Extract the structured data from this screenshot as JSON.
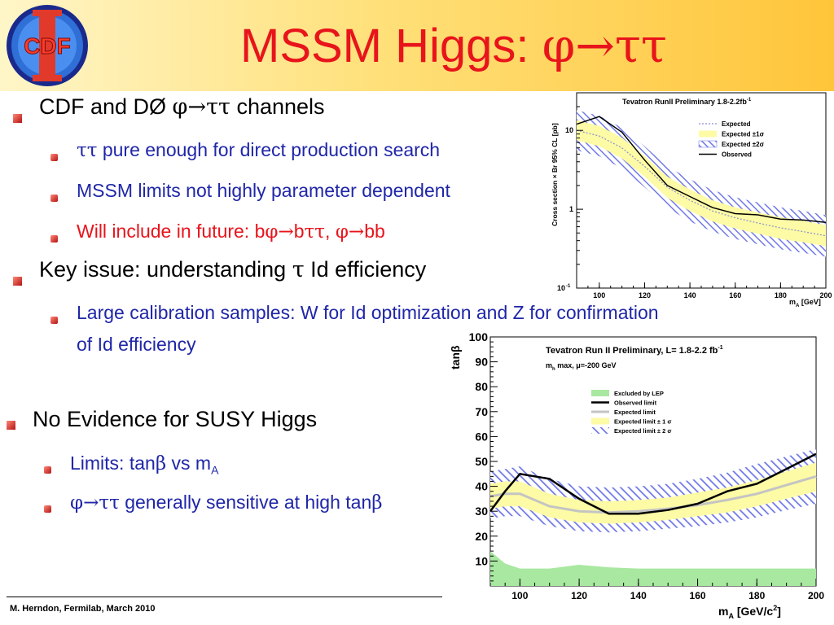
{
  "slide": {
    "title_text": "MSSM Higgs: ",
    "title_symbol": "φ→ττ",
    "logo_text": "CDF",
    "footer": "M. Herndon,  Fermilab,  March 2010",
    "bullets": {
      "b1": {
        "pre": "CDF and DØ ",
        "sym": "φ→ττ",
        "post": " channels"
      },
      "b1a": {
        "sym": "ττ",
        "post": " pure enough for direct production search"
      },
      "b1b": {
        "text": "MSSM limits not highly parameter dependent"
      },
      "b1c": {
        "pre": "Will include in future: b",
        "sym1": "φ→",
        "mid": "b",
        "sym2": "ττ",
        "comma": ", ",
        "sym3": "φ→",
        "post": "bb"
      },
      "b2": {
        "pre": "Key issue: understanding ",
        "sym": "τ",
        "post": " Id efficiency"
      },
      "b2a": {
        "line1": "Large calibration samples: W for Id optimization and Z for confirmation",
        "line2": "of Id efficiency"
      },
      "b3": {
        "text": "No Evidence for SUSY Higgs"
      },
      "b3a": {
        "pre": "Limits: tan",
        "sym": "β",
        "mid": " vs m",
        "sub": "A"
      },
      "b3b": {
        "sym1": "φ→ττ",
        "mid": " generally sensitive at high tan",
        "sym2": "β"
      }
    }
  },
  "chart_data": [
    {
      "type": "line",
      "title": "Tevatron RunII Preliminary 1.8-2.2fb",
      "title_sup": "-1",
      "xlabel": "m",
      "xlabel_sub": "A",
      "xlabel_unit": " [GeV]",
      "ylabel": "Cross section × Br 95% CL [pb]",
      "xlim": [
        90,
        200
      ],
      "ylim": [
        0.1,
        30
      ],
      "y_scale": "log",
      "x_ticks": [
        "100",
        "120",
        "140",
        "160",
        "180",
        "200"
      ],
      "y_ticks": [
        "10",
        "1"
      ],
      "y_tick_bottom": "10",
      "y_tick_bottom_sup": "-1",
      "legend": [
        {
          "label": "Expected",
          "style": "dotted"
        },
        {
          "label": "Expected ±1σ",
          "style": "yellow-band"
        },
        {
          "label": "Expected ±2σ",
          "style": "blue-hatched"
        },
        {
          "label": "Observed",
          "style": "solid"
        }
      ],
      "legend_position": "top-right",
      "colors": {
        "band1": "#fdfba5",
        "band2": "#6f78e6",
        "observed": "#000000",
        "expected": "#8b8fd0"
      },
      "x": [
        90,
        100,
        110,
        120,
        130,
        140,
        150,
        160,
        170,
        180,
        190,
        200
      ],
      "series": [
        {
          "name": "Observed",
          "values": [
            12,
            15,
            9.5,
            4.2,
            2.0,
            1.45,
            1.05,
            0.88,
            0.85,
            0.75,
            0.73,
            0.68
          ]
        },
        {
          "name": "Expected",
          "values": [
            10,
            8.5,
            6.0,
            3.5,
            1.9,
            1.3,
            0.95,
            0.78,
            0.67,
            0.58,
            0.52,
            0.46
          ]
        },
        {
          "name": "Expected ±1σ",
          "low": [
            7.5,
            6.3,
            4.4,
            2.6,
            1.4,
            0.95,
            0.7,
            0.57,
            0.49,
            0.42,
            0.38,
            0.34
          ],
          "high": [
            13.5,
            11.4,
            8.1,
            4.7,
            2.6,
            1.78,
            1.3,
            1.06,
            0.91,
            0.79,
            0.71,
            0.63
          ]
        },
        {
          "name": "Expected ±2σ",
          "low": [
            5.6,
            4.7,
            3.3,
            1.9,
            1.05,
            0.7,
            0.52,
            0.42,
            0.36,
            0.31,
            0.28,
            0.25
          ],
          "high": [
            18,
            15.3,
            10.8,
            6.3,
            3.5,
            2.4,
            1.75,
            1.42,
            1.22,
            1.06,
            0.95,
            0.84
          ]
        }
      ]
    },
    {
      "type": "line",
      "title": "Tevatron Run II Preliminary, L= 1.8-2.2 fb",
      "title_sup": "-1",
      "subtitle": "m",
      "subtitle_sub": "h",
      "subtitle_post": " max, μ=-200 GeV",
      "xlabel": "m",
      "xlabel_sub": "A",
      "xlabel_unit": " [GeV/c",
      "xlabel_sup": "2",
      "xlabel_end": "]",
      "ylabel": "tanβ",
      "xlim": [
        90,
        200
      ],
      "ylim": [
        0,
        100
      ],
      "x_ticks": [
        "100",
        "120",
        "140",
        "160",
        "180",
        "200"
      ],
      "y_ticks": [
        "10",
        "20",
        "30",
        "40",
        "50",
        "60",
        "70",
        "80",
        "90",
        "100"
      ],
      "legend": [
        {
          "label": "Excluded by LEP",
          "style": "green-fill"
        },
        {
          "label": "Observed limit",
          "style": "black-line"
        },
        {
          "label": "Expected limit",
          "style": "grey-line"
        },
        {
          "label": "Expected limit ± 1 σ",
          "style": "yellow-band"
        },
        {
          "label": "Expected limit ± 2 σ",
          "style": "blue-hatched"
        }
      ],
      "legend_position": "top-right",
      "colors": {
        "lep": "#a8e8a0",
        "band1": "#fdfba5",
        "band2": "#6f78e6",
        "observed": "#000000",
        "expected": "#c4c4c4"
      },
      "x": [
        90,
        95,
        100,
        110,
        120,
        130,
        140,
        150,
        160,
        170,
        180,
        190,
        200
      ],
      "series": [
        {
          "name": "Observed limit",
          "values": [
            30,
            38,
            45,
            43,
            35,
            29,
            29,
            30.5,
            33,
            38,
            41,
            47,
            53
          ]
        },
        {
          "name": "Expected limit",
          "values": [
            36,
            37,
            37,
            32,
            30,
            29.5,
            30,
            31,
            32.5,
            34.5,
            37,
            40.5,
            44
          ]
        },
        {
          "name": "Expected limit ± 1 σ",
          "low": [
            31,
            32,
            32,
            27.5,
            25.5,
            25,
            25.5,
            26.5,
            28,
            29.5,
            32,
            35,
            38
          ],
          "high": [
            41,
            42,
            42,
            37,
            34.5,
            34,
            34.5,
            35.5,
            37.5,
            39.5,
            42.5,
            46,
            49.5
          ]
        },
        {
          "name": "Expected limit ± 2 σ",
          "low": [
            27,
            28,
            28,
            24,
            22,
            21.5,
            22,
            23,
            24,
            25.5,
            27.5,
            30.5,
            33
          ],
          "high": [
            46,
            47,
            48,
            43,
            40,
            39.5,
            40,
            41,
            43,
            45.5,
            49,
            52,
            55
          ]
        },
        {
          "name": "Excluded by LEP",
          "values": [
            14,
            9,
            7,
            7,
            8.5,
            7.5,
            7,
            7,
            7,
            7,
            7,
            7,
            7
          ]
        }
      ]
    }
  ]
}
